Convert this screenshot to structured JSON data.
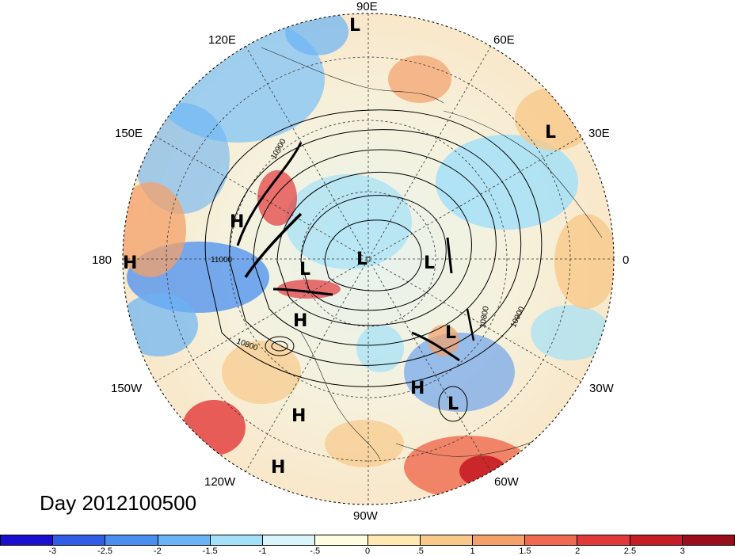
{
  "title": "Day 2012100500",
  "longitude_labels": {
    "lon_90E": "90E",
    "lon_120E": "120E",
    "lon_60E": "60E",
    "lon_150E": "150E",
    "lon_30E": "30E",
    "lon_180": "180",
    "lon_0": "0",
    "lon_150W": "150W",
    "lon_30W": "30W",
    "lon_120W": "120W",
    "lon_60W": "60W",
    "lon_90W": "90W"
  },
  "pressure_centers": [
    {
      "type": "L"
    },
    {
      "type": "L"
    },
    {
      "type": "H"
    },
    {
      "type": "H"
    },
    {
      "type": "L"
    },
    {
      "type": "L"
    },
    {
      "type": "L"
    },
    {
      "type": "H"
    },
    {
      "type": "L"
    },
    {
      "type": "H"
    },
    {
      "type": "L"
    },
    {
      "type": "H"
    },
    {
      "type": "H"
    }
  ],
  "contour_labels": [
    "10900",
    "11000",
    "10800",
    "10800",
    "10900"
  ],
  "colorbar": {
    "colors": [
      "#1a0ed1",
      "#2f5de6",
      "#4a8ff0",
      "#6ab4f5",
      "#a4e1f8",
      "#d9f5fb",
      "#fffde0",
      "#fde9b1",
      "#f8c98a",
      "#f4a06a",
      "#ef6a4e",
      "#e3383a",
      "#c61d24",
      "#9a0d1b"
    ],
    "ticks": [
      "-3",
      "-2.5",
      "-2",
      "-1.5",
      "-1",
      "-.5",
      "0",
      ".5",
      "1",
      "1.5",
      "2",
      "2.5",
      "3"
    ]
  },
  "colors": {
    "ocean_warm": "#f4a06a",
    "ocean_cool": "#6ab4f5",
    "neutral": "#fffde0"
  }
}
